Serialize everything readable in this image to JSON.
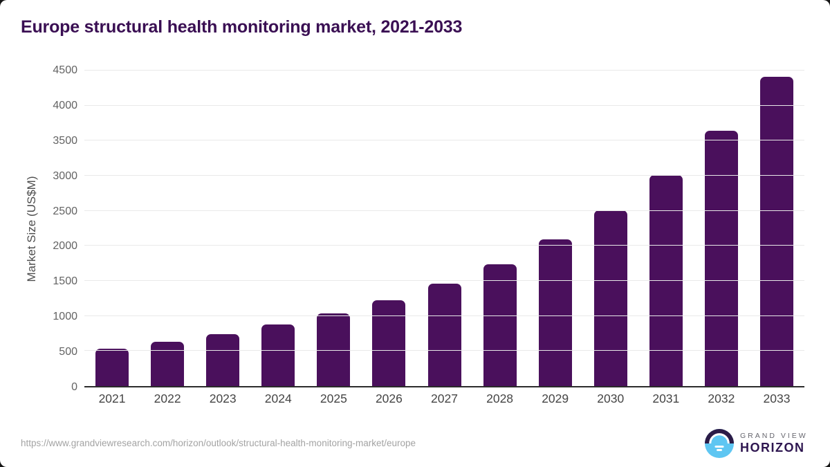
{
  "chart_data": {
    "type": "bar",
    "title": "Europe structural health monitoring market, 2021-2033",
    "categories": [
      "2021",
      "2022",
      "2023",
      "2024",
      "2025",
      "2026",
      "2027",
      "2028",
      "2029",
      "2030",
      "2031",
      "2032",
      "2033"
    ],
    "values": [
      530,
      635,
      745,
      875,
      1035,
      1220,
      1465,
      1740,
      2090,
      2510,
      3010,
      3640,
      4410
    ],
    "xlabel": "",
    "ylabel": "Market Size (US$M)",
    "ylim": [
      0,
      4500
    ],
    "yticks": [
      0,
      500,
      1000,
      1500,
      2000,
      2500,
      3000,
      3500,
      4000,
      4500
    ],
    "grid": "horizontal",
    "legend_position": "none",
    "bar_color": "#4a105c"
  },
  "colors": {
    "title_text": "#3a0f53",
    "bar": "#4a105c",
    "gridline": "#e9e9e9",
    "axis_line": "#2b2b2b",
    "logo_dark": "#2b1b47",
    "logo_blue": "#5ec6f2"
  },
  "footer": {
    "source_url": "https://www.grandviewresearch.com/horizon/outlook/structural-health-monitoring-market/europe",
    "brand_top": "GRAND VIEW",
    "brand_bottom": "HORIZON"
  }
}
